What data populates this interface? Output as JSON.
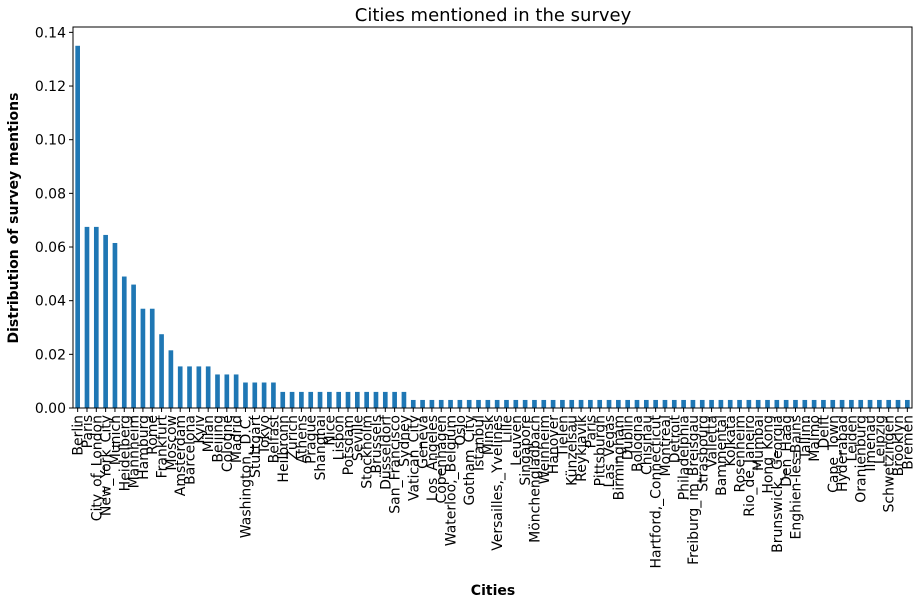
{
  "chart_data": {
    "type": "bar",
    "title": "Cities mentioned in the survey",
    "xlabel": "Cities",
    "ylabel": "Distribution of survey mentions",
    "ylim": [
      0,
      0.142
    ],
    "yticks": [
      "0.00",
      "0.02",
      "0.04",
      "0.06",
      "0.08",
      "0.10",
      "0.12",
      "0.14"
    ],
    "grid": false,
    "bar_color": "#1f77b4",
    "categories": [
      "Berlin",
      "Paris",
      "City_of_London",
      "New_York_City",
      "Munich",
      "Heidelberg",
      "Mannheim",
      "Hamburg",
      "Rome",
      "Frankfurt",
      "Moscow",
      "Amsterdam",
      "Barcelona",
      "Kyiv",
      "Milan",
      "Beijing",
      "Cologne",
      "Madrid",
      "Washington,_D.C.",
      "Stuttgart",
      "Tokyo",
      "Belfast",
      "Heilbronn",
      "Zürich",
      "Athens",
      "Prague",
      "Shanghai",
      "Nice",
      "Lisbon",
      "Potsdam",
      "Seville",
      "Stockholm",
      "Brussels",
      "Düsseldorf",
      "San_Francisco",
      "Sydney",
      "Vatican_City",
      "Geneva",
      "Los_Angeles",
      "Copenhagen",
      "Waterloo,_Belgium",
      "Oslo",
      "Gotham_City",
      "Istanbul",
      "Minsk",
      "Versailles,_Yvelines",
      "Lille",
      "Leuven",
      "Singapore",
      "Mönchengladbach",
      "Weinheim",
      "Hanover",
      "Tielen",
      "Künzelsau",
      "Reykjavík",
      "Paris",
      "Pittsburgh",
      "Las_Vegas",
      "Birmingham",
      "Dublin",
      "Bologna",
      "Chisinau",
      "Hartford,_Connecticut",
      "Montreal",
      "Detroit",
      "Philadelphia",
      "Freiburg_im_Breisgau",
      "Strasbourg",
      "Valletta",
      "Bammental",
      "Kolkata",
      "Rosenheim",
      "Rio_de_Janeiro",
      "Mumbai",
      "Hong_Kong",
      "Brunswick,_Georgia",
      "Den_Haag",
      "Enghien-les-Bains",
      "Tallinn",
      "Malmö",
      "Delft",
      "Cape_Town",
      "Hyderabad",
      "Leiden",
      "Oranienburg",
      "Ilmenau",
      "Leipzig",
      "Schwetzingen",
      "Brooklyn",
      "Bremen"
    ],
    "values": [
      0.135,
      0.0675,
      0.0675,
      0.0645,
      0.0615,
      0.049,
      0.046,
      0.037,
      0.037,
      0.0275,
      0.0215,
      0.0155,
      0.0155,
      0.0155,
      0.0155,
      0.0125,
      0.0125,
      0.0125,
      0.0095,
      0.0095,
      0.0095,
      0.0095,
      0.006,
      0.006,
      0.006,
      0.006,
      0.006,
      0.006,
      0.006,
      0.006,
      0.006,
      0.006,
      0.006,
      0.006,
      0.006,
      0.006,
      0.003,
      0.003,
      0.003,
      0.003,
      0.003,
      0.003,
      0.003,
      0.003,
      0.003,
      0.003,
      0.003,
      0.003,
      0.003,
      0.003,
      0.003,
      0.003,
      0.003,
      0.003,
      0.003,
      0.003,
      0.003,
      0.003,
      0.003,
      0.003,
      0.003,
      0.003,
      0.003,
      0.003,
      0.003,
      0.003,
      0.003,
      0.003,
      0.003,
      0.003,
      0.003,
      0.003,
      0.003,
      0.003,
      0.003,
      0.003,
      0.003,
      0.003,
      0.003,
      0.003,
      0.003,
      0.003,
      0.003,
      0.003,
      0.003,
      0.003,
      0.003,
      0.003,
      0.003,
      0.003
    ]
  }
}
